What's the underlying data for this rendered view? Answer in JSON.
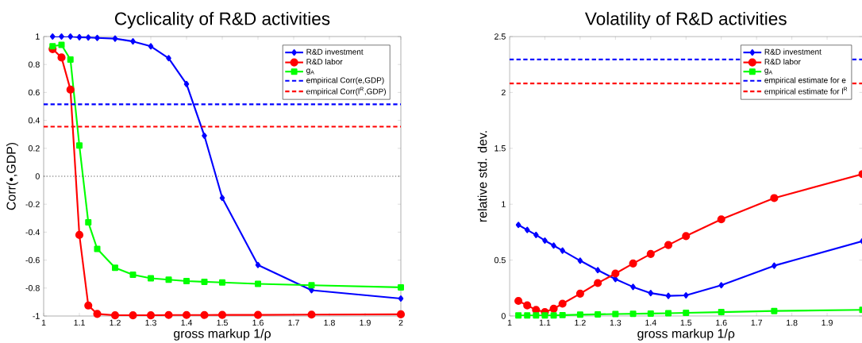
{
  "chart_data": [
    {
      "type": "line",
      "title": "Cyclicality of R&D activities",
      "xlabel": "gross markup 1/ρ",
      "ylabel": "Corr(•,GDP)",
      "x": [
        1.025,
        1.05,
        1.075,
        1.1,
        1.125,
        1.15,
        1.2,
        1.25,
        1.3,
        1.35,
        1.4,
        1.45,
        1.5,
        1.6,
        1.75,
        2.0
      ],
      "xlim": [
        1,
        2
      ],
      "xticks": [
        1,
        1.1,
        1.2,
        1.3,
        1.4,
        1.5,
        1.6,
        1.7,
        1.8,
        1.9,
        2
      ],
      "ylim": [
        -1,
        1
      ],
      "yticks": [
        -1,
        -0.8,
        -0.6,
        -0.4,
        -0.2,
        0,
        0.2,
        0.4,
        0.6,
        0.8,
        1
      ],
      "legend": "top right",
      "series": [
        {
          "name": "R&D investment",
          "color": "#0000ff",
          "marker": "diamond",
          "line_style": "solid",
          "values": [
            1,
            1,
            1,
            0.995,
            0.993,
            0.99,
            0.985,
            0.965,
            0.93,
            0.845,
            0.66,
            0.29,
            -0.155,
            -0.635,
            -0.815,
            -0.875
          ]
        },
        {
          "name": "R&D labor",
          "color": "#ff0000",
          "marker": "circle",
          "line_style": "solid",
          "values": [
            0.91,
            0.85,
            0.62,
            -0.42,
            -0.925,
            -0.985,
            -0.995,
            -0.995,
            -0.995,
            -0.993,
            -0.993,
            -0.993,
            -0.992,
            -0.992,
            -0.99,
            -0.988
          ]
        },
        {
          "name": "g$_{A}$",
          "color": "#00ff00",
          "marker": "square",
          "line_style": "solid",
          "values": [
            0.93,
            0.94,
            0.835,
            0.22,
            -0.33,
            -0.52,
            -0.655,
            -0.705,
            -0.73,
            -0.74,
            -0.75,
            -0.755,
            -0.76,
            -0.77,
            -0.78,
            -0.795
          ]
        }
      ],
      "ref_lines": [
        {
          "axis": "y",
          "value": 0.515,
          "label": "empirical Corr(e,GDP)",
          "color": "#0000ff",
          "line_style": "dashed"
        },
        {
          "axis": "y",
          "value": 0.355,
          "label": "empirical Corr(l$^{R}$,GDP)",
          "color": "#ff0000",
          "line_style": "dashed"
        },
        {
          "axis": "y",
          "value": 0,
          "color": "#000000",
          "line_style": "dotted"
        }
      ]
    },
    {
      "type": "line",
      "title": "Volatility of R&D activities",
      "xlabel": "gross markup 1/ρ",
      "ylabel": "relative std. dev.",
      "x": [
        1.025,
        1.05,
        1.075,
        1.1,
        1.125,
        1.15,
        1.2,
        1.25,
        1.3,
        1.35,
        1.4,
        1.45,
        1.5,
        1.6,
        1.75,
        2.0
      ],
      "xlim": [
        1,
        2
      ],
      "xticks": [
        1,
        1.1,
        1.2,
        1.3,
        1.4,
        1.5,
        1.6,
        1.7,
        1.8,
        1.9,
        {
          "value": 2,
          "label": null
        }
      ],
      "ylim": [
        0,
        2.5
      ],
      "yticks": [
        0,
        0.5,
        1,
        1.5,
        2,
        2.5
      ],
      "legend": "top right",
      "series": [
        {
          "name": "R&D investment",
          "color": "#0000ff",
          "marker": "diamond",
          "line_style": "solid",
          "values": [
            0.815,
            0.77,
            0.725,
            0.675,
            0.63,
            0.585,
            0.495,
            0.41,
            0.33,
            0.26,
            0.205,
            0.18,
            0.185,
            0.275,
            0.45,
            0.67
          ]
        },
        {
          "name": "R&D labor",
          "color": "#ff0000",
          "marker": "circle",
          "line_style": "solid",
          "values": [
            0.135,
            0.095,
            0.055,
            0.035,
            0.065,
            0.11,
            0.2,
            0.295,
            0.38,
            0.47,
            0.555,
            0.635,
            0.715,
            0.865,
            1.055,
            1.27
          ]
        },
        {
          "name": "g$_{A}$",
          "color": "#00ff00",
          "marker": "square",
          "line_style": "solid",
          "values": [
            0.005,
            0.005,
            0.005,
            0.005,
            0.005,
            0.008,
            0.012,
            0.015,
            0.018,
            0.02,
            0.022,
            0.025,
            0.028,
            0.035,
            0.045,
            0.055
          ]
        }
      ],
      "ref_lines": [
        {
          "axis": "y",
          "value": 2.295,
          "label": "empirical estimate for e",
          "color": "#0000ff",
          "line_style": "dashed"
        },
        {
          "axis": "y",
          "value": 2.08,
          "label": "empirical estimate for l$^{R}$",
          "color": "#ff0000",
          "line_style": "dashed"
        }
      ]
    }
  ]
}
